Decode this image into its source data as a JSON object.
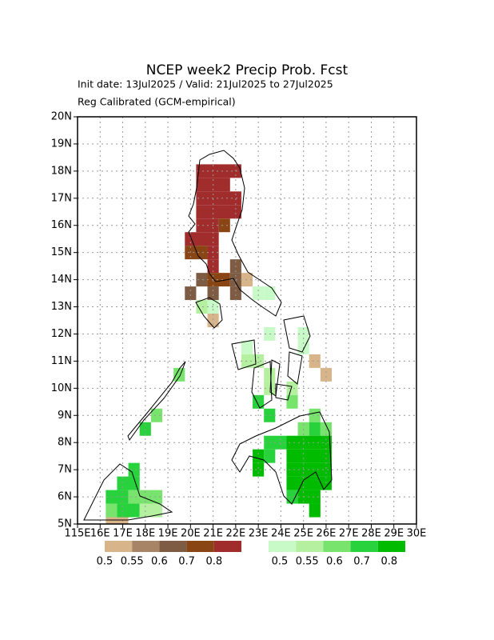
{
  "chart_data": {
    "type": "grid-map",
    "title": "NCEP week2 Precip Prob. Fcst",
    "subtitle": [
      "Init date: 13Jul2025 / Valid: 21Jul2025 to 27Jul2025",
      "Reg Calibrated (GCM-empirical)"
    ],
    "xlim": [
      115,
      130
    ],
    "ylim": [
      5,
      20
    ],
    "xticks": [
      {
        "value": 115,
        "label": "115E"
      },
      {
        "value": 116,
        "label": "16E"
      },
      {
        "value": 117,
        "label": "17E"
      },
      {
        "value": 118,
        "label": "18E"
      },
      {
        "value": 119,
        "label": "19E"
      },
      {
        "value": 120,
        "label": "20E"
      },
      {
        "value": 121,
        "label": "21E"
      },
      {
        "value": 122,
        "label": "22E"
      },
      {
        "value": 123,
        "label": "23E"
      },
      {
        "value": 124,
        "label": "24E"
      },
      {
        "value": 125,
        "label": "25E"
      },
      {
        "value": 126,
        "label": "26E"
      },
      {
        "value": 127,
        "label": "27E"
      },
      {
        "value": 128,
        "label": "28E"
      },
      {
        "value": 129,
        "label": "29E"
      },
      {
        "value": 130,
        "label": "30E"
      }
    ],
    "yticks": [
      {
        "value": 5,
        "label": "5N"
      },
      {
        "value": 6,
        "label": "6N"
      },
      {
        "value": 7,
        "label": "7N"
      },
      {
        "value": 8,
        "label": "8N"
      },
      {
        "value": 9,
        "label": "9N"
      },
      {
        "value": 10,
        "label": "10N"
      },
      {
        "value": 11,
        "label": "11N"
      },
      {
        "value": 12,
        "label": "12N"
      },
      {
        "value": 13,
        "label": "13N"
      },
      {
        "value": 14,
        "label": "14N"
      },
      {
        "value": 15,
        "label": "15N"
      },
      {
        "value": 16,
        "label": "16N"
      },
      {
        "value": 17,
        "label": "17N"
      },
      {
        "value": 18,
        "label": "18N"
      },
      {
        "value": 19,
        "label": "19N"
      },
      {
        "value": 20,
        "label": "20N"
      }
    ],
    "grid": true,
    "dry": {
      "colors": [
        "#d7b489",
        "#a88466",
        "#7e5c43",
        "#8a4514",
        "#a02c2c"
      ],
      "levels": [
        0.5,
        0.55,
        0.6,
        0.7,
        0.8
      ],
      "runs": [
        [
          120.25,
          122.25,
          17.75,
          18.25,
          0.8
        ],
        [
          120.25,
          121.75,
          17.25,
          17.75,
          0.8
        ],
        [
          120.25,
          122.25,
          16.75,
          17.25,
          0.8
        ],
        [
          120.25,
          122.25,
          16.25,
          16.75,
          0.8
        ],
        [
          120.25,
          121.25,
          15.75,
          16.25,
          0.8
        ],
        [
          121.25,
          121.75,
          15.75,
          16.25,
          0.7
        ],
        [
          119.75,
          121.25,
          15.25,
          15.75,
          0.8
        ],
        [
          119.75,
          120.75,
          14.75,
          15.25,
          0.7
        ],
        [
          120.75,
          121.25,
          14.75,
          15.25,
          0.8
        ],
        [
          120.75,
          121.25,
          14.25,
          14.75,
          0.8
        ],
        [
          121.75,
          122.25,
          14.25,
          14.75,
          0.6
        ],
        [
          120.25,
          120.75,
          13.75,
          14.25,
          0.6
        ],
        [
          120.75,
          121.75,
          13.75,
          14.25,
          0.7
        ],
        [
          121.75,
          122.25,
          13.75,
          14.25,
          0.6
        ],
        [
          122.25,
          122.75,
          13.75,
          14.25,
          0.5
        ],
        [
          119.75,
          120.25,
          13.25,
          13.75,
          0.6
        ],
        [
          120.75,
          121.25,
          13.25,
          13.75,
          0.6
        ],
        [
          121.75,
          122.25,
          13.25,
          13.75,
          0.6
        ],
        [
          120.75,
          121.25,
          12.25,
          12.75,
          0.5
        ],
        [
          125.25,
          125.75,
          10.75,
          11.25,
          0.5
        ],
        [
          125.75,
          126.25,
          10.25,
          10.75,
          0.5
        ],
        [
          116.25,
          117.25,
          4.75,
          5.25,
          0.5
        ]
      ]
    },
    "wet": {
      "colors": [
        "#c8fac8",
        "#b4f0a0",
        "#78e46e",
        "#28d23c",
        "#00bb00"
      ],
      "levels": [
        0.5,
        0.55,
        0.6,
        0.7,
        0.8
      ],
      "runs": [
        [
          120.25,
          120.75,
          12.75,
          13.25,
          0.55
        ],
        [
          120.75,
          121.25,
          12.75,
          13.25,
          0.5
        ],
        [
          122.75,
          123.25,
          13.25,
          13.75,
          0.5
        ],
        [
          123.25,
          123.75,
          13.25,
          13.75,
          0.5
        ],
        [
          123.25,
          123.75,
          11.75,
          12.25,
          0.5
        ],
        [
          124.75,
          125.25,
          11.75,
          12.25,
          0.5
        ],
        [
          124.75,
          125.25,
          11.25,
          11.75,
          0.5
        ],
        [
          122.25,
          122.75,
          11.25,
          11.75,
          0.5
        ],
        [
          122.25,
          123.25,
          10.75,
          11.25,
          0.55
        ],
        [
          123.25,
          123.75,
          10.25,
          10.75,
          0.55
        ],
        [
          123.25,
          123.75,
          9.75,
          10.25,
          0.55
        ],
        [
          124.25,
          124.75,
          9.75,
          10.25,
          0.55
        ],
        [
          119.25,
          119.75,
          10.25,
          10.75,
          0.6
        ],
        [
          122.75,
          123.25,
          9.25,
          9.75,
          0.7
        ],
        [
          124.25,
          124.75,
          9.25,
          9.75,
          0.6
        ],
        [
          118.25,
          118.75,
          8.75,
          9.25,
          0.6
        ],
        [
          123.25,
          123.75,
          8.75,
          9.25,
          0.7
        ],
        [
          125.25,
          125.75,
          8.75,
          9.25,
          0.6
        ],
        [
          117.75,
          118.25,
          8.25,
          8.75,
          0.7
        ],
        [
          124.75,
          125.25,
          8.25,
          8.75,
          0.6
        ],
        [
          125.25,
          125.75,
          8.25,
          8.75,
          0.7
        ],
        [
          125.75,
          126.25,
          8.25,
          8.75,
          0.6
        ],
        [
          123.25,
          124.25,
          7.75,
          8.25,
          0.7
        ],
        [
          124.25,
          126.25,
          7.75,
          8.25,
          0.8
        ],
        [
          122.75,
          123.25,
          7.25,
          7.75,
          0.8
        ],
        [
          123.25,
          123.75,
          7.25,
          7.75,
          0.7
        ],
        [
          124.25,
          126.25,
          7.25,
          7.75,
          0.8
        ],
        [
          122.75,
          123.25,
          6.75,
          7.25,
          0.8
        ],
        [
          117.25,
          117.75,
          6.75,
          7.25,
          0.7
        ],
        [
          124.25,
          126.25,
          6.75,
          7.25,
          0.8
        ],
        [
          116.75,
          117.75,
          6.25,
          6.75,
          0.7
        ],
        [
          124.25,
          126.25,
          6.25,
          6.75,
          0.8
        ],
        [
          116.25,
          117.25,
          5.75,
          6.25,
          0.7
        ],
        [
          117.25,
          118.75,
          5.75,
          6.25,
          0.6
        ],
        [
          124.25,
          124.75,
          5.75,
          6.25,
          0.7
        ],
        [
          124.75,
          125.75,
          5.75,
          6.25,
          0.8
        ],
        [
          116.25,
          116.75,
          5.25,
          5.75,
          0.6
        ],
        [
          116.75,
          117.75,
          5.25,
          5.75,
          0.7
        ],
        [
          117.75,
          118.75,
          5.25,
          5.75,
          0.55
        ],
        [
          125.25,
          125.75,
          5.25,
          5.75,
          0.8
        ]
      ]
    }
  }
}
